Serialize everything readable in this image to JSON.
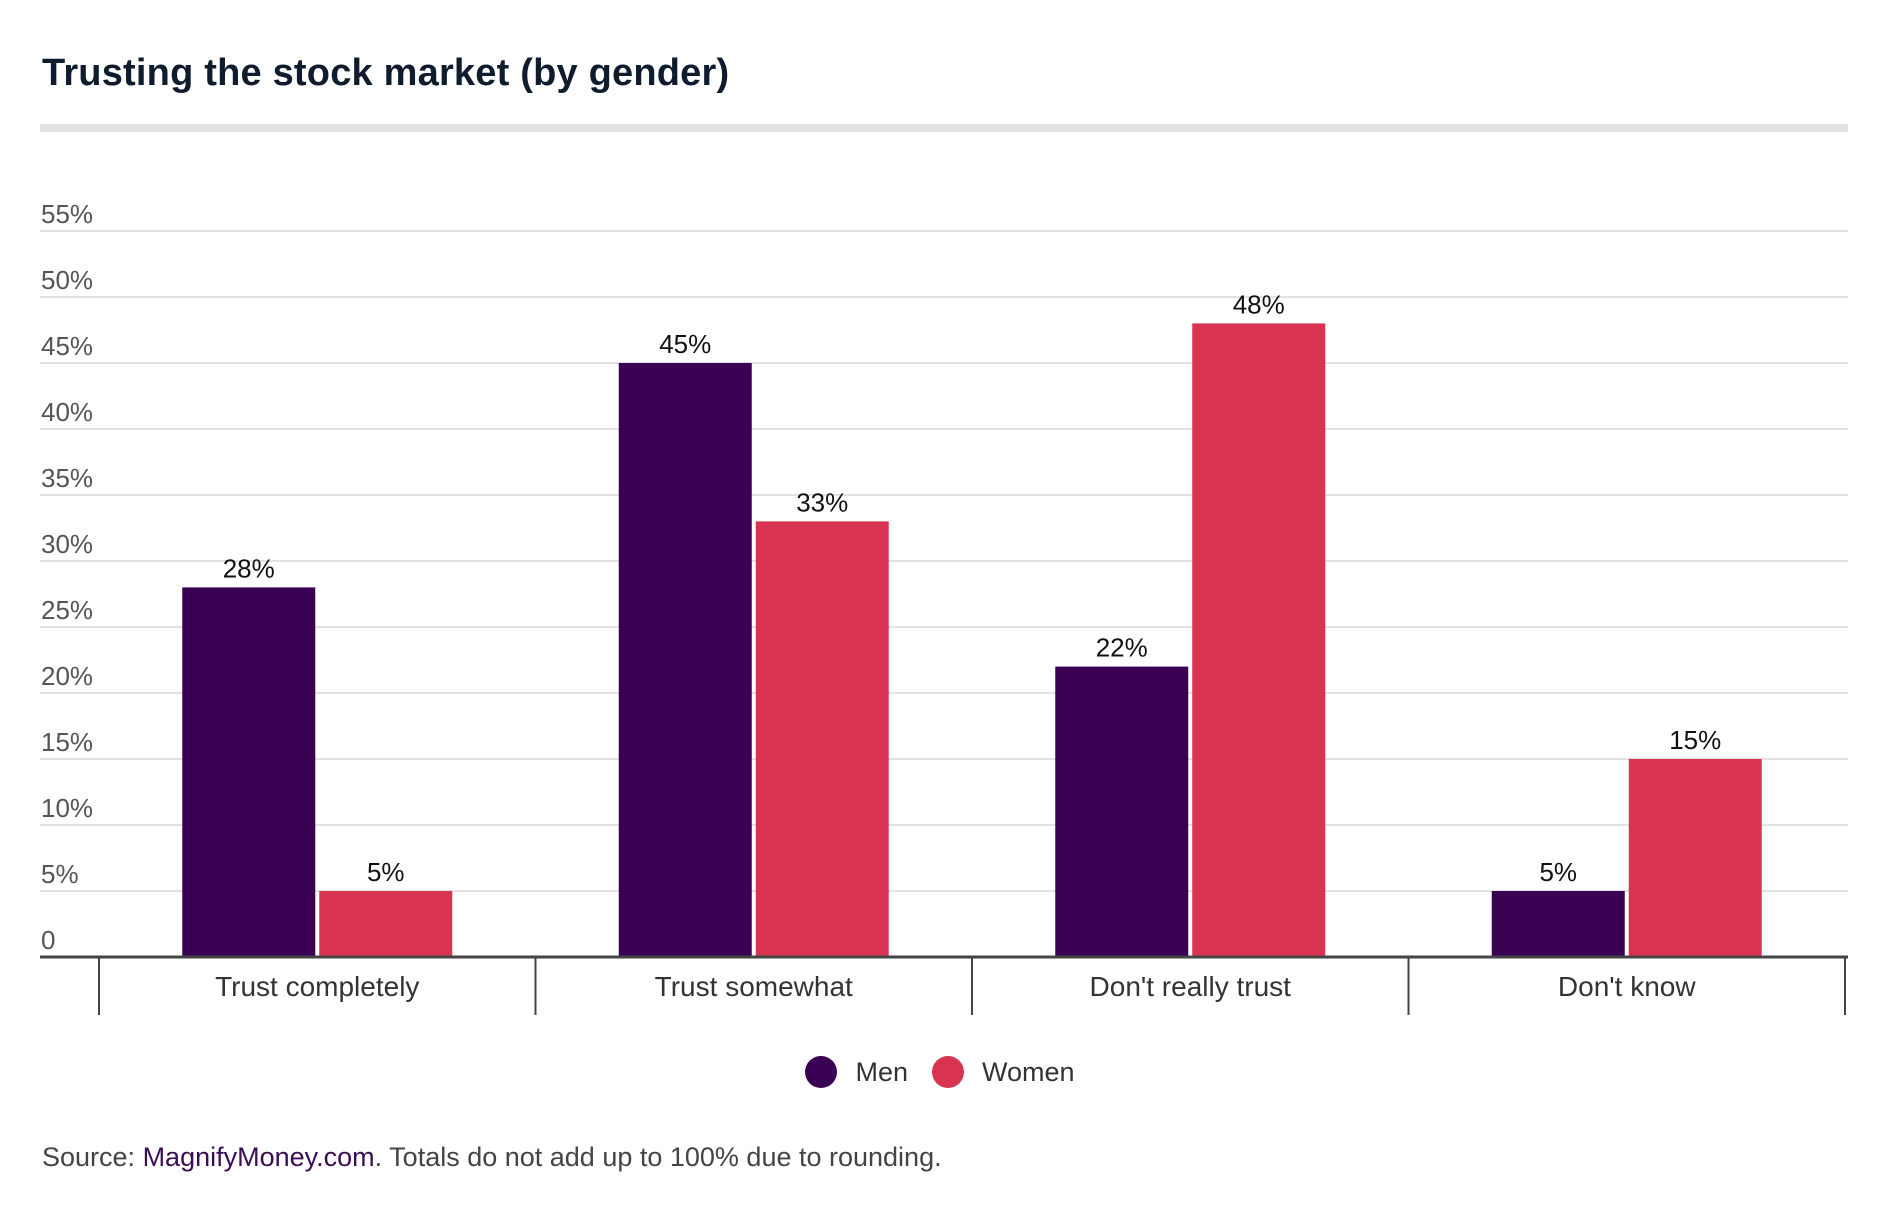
{
  "title": "Trusting the stock market (by gender)",
  "colors": {
    "men": "#3a0054",
    "women": "#d83451",
    "grid": "#d9d9d9",
    "axis": "#444444",
    "link": "#3a0d55"
  },
  "legend": {
    "men": "Men",
    "women": "Women"
  },
  "source": {
    "prefix": "Source: ",
    "link_text": "MagnifyMoney.com",
    "suffix": ". Totals do not add up to 100% due to rounding."
  },
  "chart_data": {
    "type": "bar",
    "title": "Trusting the stock market (by gender)",
    "categories": [
      "Trust completely",
      "Trust somewhat",
      "Don't really trust",
      "Don't know"
    ],
    "series": [
      {
        "name": "Men",
        "values": [
          28,
          45,
          22,
          5
        ],
        "color": "#3a0054"
      },
      {
        "name": "Women",
        "values": [
          5,
          33,
          48,
          15
        ],
        "color": "#d83451"
      }
    ],
    "y_ticks": [
      0,
      5,
      10,
      15,
      20,
      25,
      30,
      35,
      40,
      45,
      50,
      55
    ],
    "y_tick_labels": [
      "0",
      "5%",
      "10%",
      "15%",
      "20%",
      "25%",
      "30%",
      "35%",
      "40%",
      "45%",
      "50%",
      "55%"
    ],
    "value_labels": [
      [
        "28%",
        "45%",
        "22%",
        "5%"
      ],
      [
        "5%",
        "33%",
        "48%",
        "15%"
      ]
    ],
    "ylim": [
      0,
      55
    ],
    "grid": true,
    "legend_position": "bottom-center",
    "xlabel": "",
    "ylabel": ""
  }
}
